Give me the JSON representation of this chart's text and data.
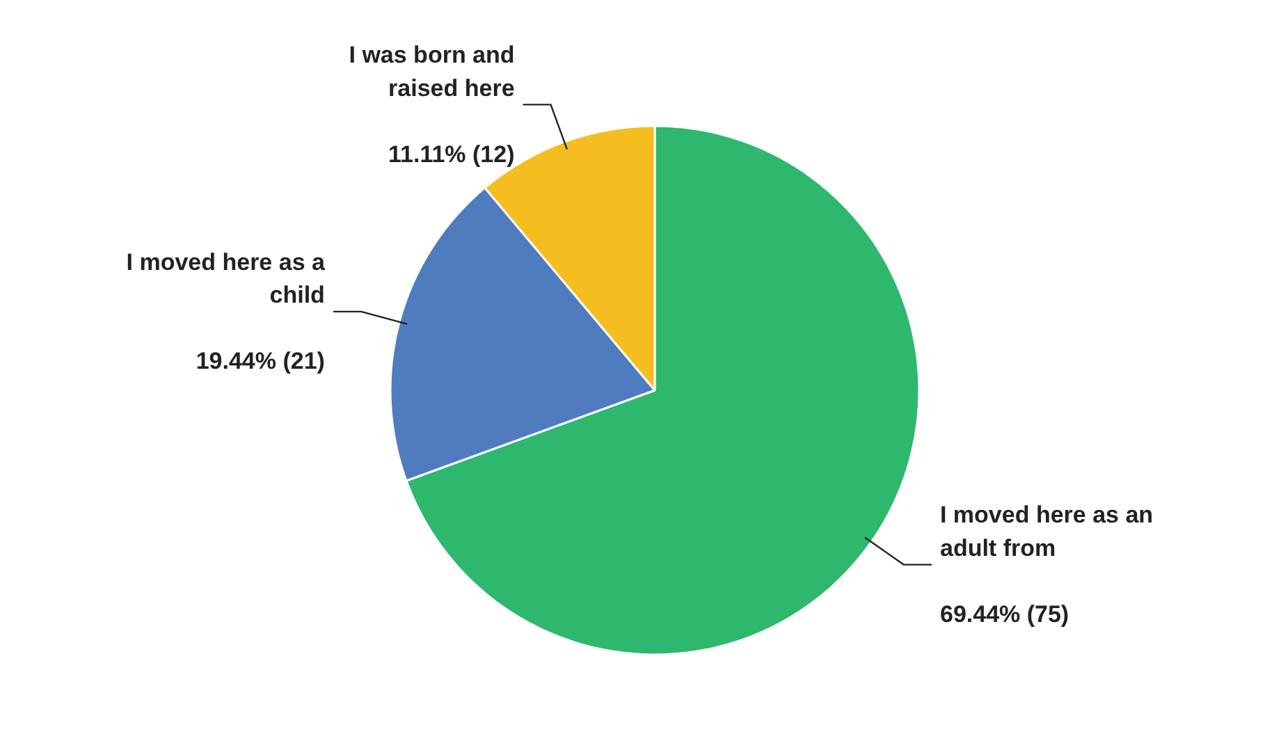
{
  "chart_data": {
    "type": "pie",
    "categories": [
      "I moved here as an adult from",
      "I moved here as a child",
      "I was born and raised here"
    ],
    "values": [
      75,
      21,
      12
    ],
    "colors": [
      "#2db86e",
      "#4f7cbf",
      "#f5bd1f"
    ],
    "value_labels": [
      "69.44% (75)",
      "19.44% (21)",
      "11.11% (12)"
    ]
  }
}
